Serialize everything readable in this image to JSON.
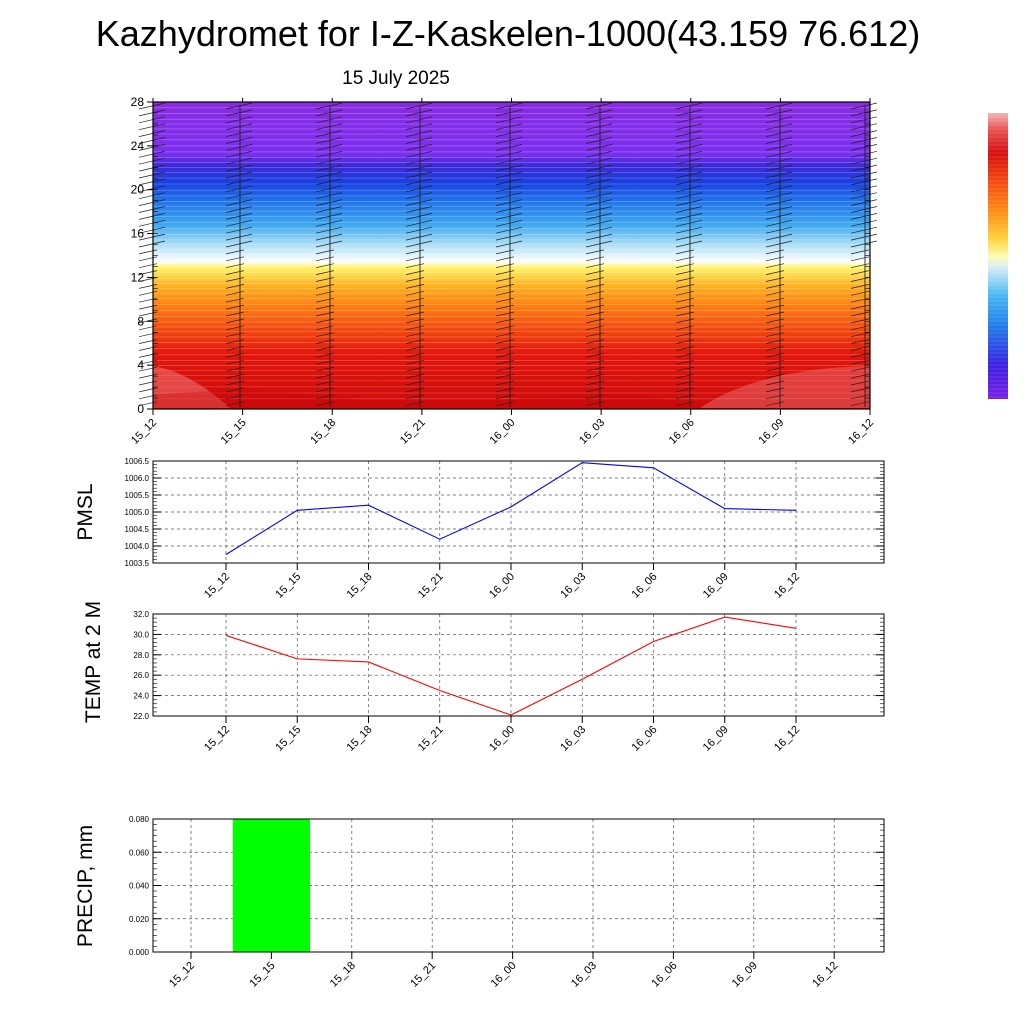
{
  "page": {
    "title": "Kazhydromet for I-Z-Kaskelen-1000(43.159 76.612)",
    "subtitle": "15 July 2025"
  },
  "chart_data": [
    {
      "type": "heatmap",
      "id": "temperature-profile",
      "ylim": [
        0,
        28
      ],
      "yticks": [
        "0",
        "4",
        "8",
        "12",
        "16",
        "20",
        "24",
        "28"
      ],
      "categories": [
        "15_12",
        "15_15",
        "15_18",
        "15_21",
        "16_00",
        "16_03",
        "16_06",
        "16_09",
        "16_12"
      ],
      "grid": false,
      "colorbar": {
        "placement": "right",
        "colors": [
          "#7a1fe6",
          "#3a22e0",
          "#1f5ce8",
          "#2d8fef",
          "#45b7f2",
          "#8fd2f5",
          "#d8edf8",
          "#fff6a0",
          "#ffd23a",
          "#ffa21c",
          "#ff7a14",
          "#f44a10",
          "#e81c0e",
          "#d60e0e",
          "#e85050",
          "#f2a0a0"
        ]
      }
    },
    {
      "type": "line",
      "id": "pmsl",
      "ylabel": "PMSL",
      "categories": [
        "15_12",
        "15_15",
        "15_18",
        "15_21",
        "16_00",
        "16_03",
        "16_06",
        "16_09",
        "16_12"
      ],
      "yticks": [
        "1003.5",
        "1004.0",
        "1004.5",
        "1005.0",
        "1005.5",
        "1006.0",
        "1006.5"
      ],
      "ylim": [
        1003.5,
        1006.5
      ],
      "grid": true,
      "series": [
        {
          "color": "#0000ff",
          "values": [
            1003.75,
            1005.05,
            1005.2,
            1004.2,
            1005.15,
            1006.45,
            1006.3,
            1005.1,
            1005.05
          ]
        }
      ]
    },
    {
      "type": "line",
      "id": "temp2m",
      "ylabel": "TEMP at 2 M",
      "categories": [
        "15_12",
        "15_15",
        "15_18",
        "15_21",
        "16_00",
        "16_03",
        "16_06",
        "16_09",
        "16_12"
      ],
      "yticks": [
        "22.0",
        "24.0",
        "26.0",
        "28.0",
        "30.0",
        "32.0"
      ],
      "ylim": [
        22,
        32
      ],
      "grid": true,
      "series": [
        {
          "color": "#ff0000",
          "values": [
            29.9,
            27.6,
            27.3,
            24.5,
            22.1,
            25.6,
            29.3,
            31.7,
            30.6
          ]
        }
      ]
    },
    {
      "type": "bar",
      "id": "precip",
      "ylabel": "PRECIP, mm",
      "categories": [
        "15_12",
        "15_15",
        "15_18",
        "15_21",
        "16_00",
        "16_03",
        "16_06",
        "16_09",
        "16_12"
      ],
      "yticks": [
        "0.000",
        "0.020",
        "0.040",
        "0.060",
        "0.080"
      ],
      "ylim": [
        0,
        0.08
      ],
      "grid": true,
      "series": [
        {
          "color": "#00ff00",
          "values": [
            0,
            0.08,
            0,
            0,
            0,
            0,
            0,
            0,
            0
          ]
        }
      ]
    }
  ]
}
